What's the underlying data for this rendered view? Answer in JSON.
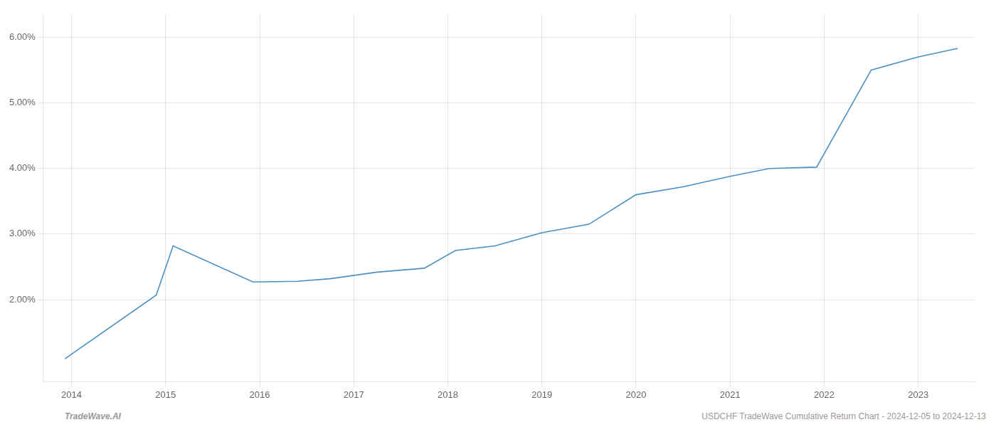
{
  "chart_data": {
    "type": "line",
    "x": [
      2013.93,
      2014.9,
      2015.08,
      2015.93,
      2016.4,
      2016.75,
      2017.25,
      2017.75,
      2018.08,
      2018.5,
      2019.0,
      2019.5,
      2020.0,
      2020.5,
      2021.0,
      2021.42,
      2021.92,
      2022.5,
      2023.0,
      2023.42
    ],
    "values": [
      1.1,
      2.07,
      2.82,
      2.27,
      2.28,
      2.32,
      2.42,
      2.48,
      2.75,
      2.82,
      3.02,
      3.15,
      3.6,
      3.72,
      3.88,
      4.0,
      4.02,
      5.5,
      5.7,
      5.83
    ],
    "color": "#4a90c4",
    "xlim": [
      2013.7,
      2023.6
    ],
    "ylim": [
      0.75,
      6.35
    ],
    "xticks": [
      2014,
      2015,
      2016,
      2017,
      2018,
      2019,
      2020,
      2021,
      2022,
      2023
    ],
    "yticks": [
      {
        "value": 2.0,
        "label": "2.00%"
      },
      {
        "value": 3.0,
        "label": "3.00%"
      },
      {
        "value": 4.0,
        "label": "4.00%"
      },
      {
        "value": 5.0,
        "label": "5.00%"
      },
      {
        "value": 6.0,
        "label": "6.00%"
      }
    ],
    "grid": true,
    "annotations": [
      "TradeWave.AI",
      "USDCHF TradeWave Cumulative Return Chart - 2024-12-05 to 2024-12-13"
    ]
  }
}
